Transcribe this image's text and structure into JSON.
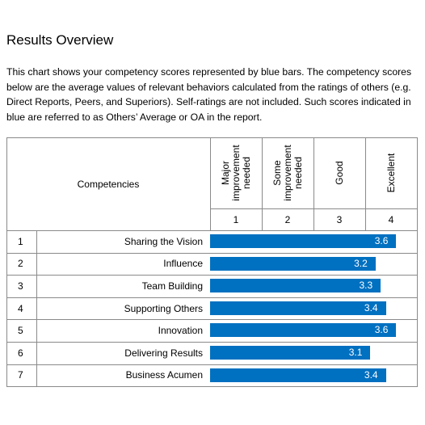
{
  "title": "Results Overview",
  "description": "This chart shows your competency scores represented by blue bars. The competency scores below are the average values of relevant behaviors calculated from the ratings of others (e.g. Direct Reports, Peers, and Superiors). Self-ratings are not included. Such scores indicated in blue are referred to as Others’ Average or OA in the report.",
  "table": {
    "header": "Competencies",
    "scale_labels": [
      "Major improvement needed",
      "Some improvement needed",
      "Good",
      "Excellent"
    ],
    "scale_ticks": [
      1,
      2,
      3,
      4
    ],
    "xlim": [
      0,
      4
    ],
    "bar_color": "#0070c0",
    "rows": [
      {
        "index": "1",
        "name": "Sharing the Vision",
        "value": 3.6
      },
      {
        "index": "2",
        "name": "Influence",
        "value": 3.2
      },
      {
        "index": "3",
        "name": "Team Building",
        "value": 3.3
      },
      {
        "index": "4",
        "name": "Supporting Others",
        "value": 3.4
      },
      {
        "index": "5",
        "name": "Innovation",
        "value": 3.6
      },
      {
        "index": "6",
        "name": "Delivering Results",
        "value": 3.1
      },
      {
        "index": "7",
        "name": "Business Acumen",
        "value": 3.4
      }
    ]
  }
}
